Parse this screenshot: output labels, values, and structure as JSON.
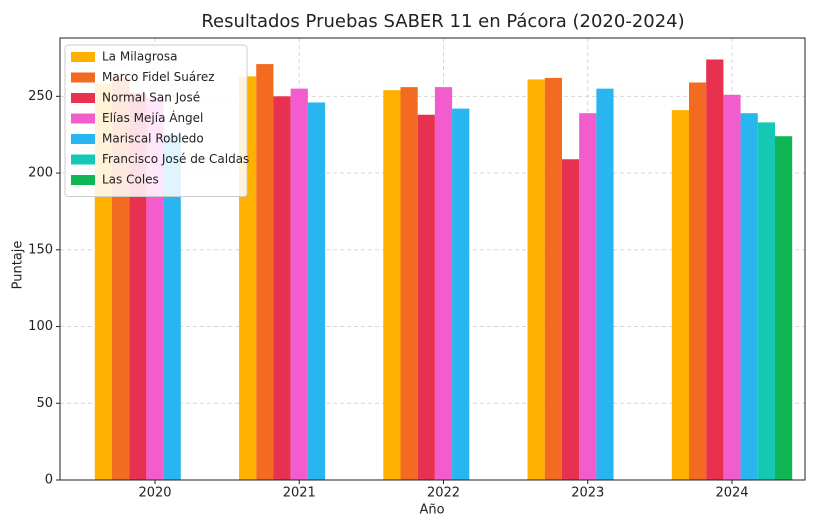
{
  "chart_data": {
    "type": "bar",
    "title": "Resultados Pruebas SABER 11 en Pácora (2020-2024)",
    "xlabel": "Año",
    "ylabel": "Puntaje",
    "categories": [
      "2020",
      "2021",
      "2022",
      "2023",
      "2024"
    ],
    "series": [
      {
        "name": "La Milagrosa",
        "color": "#ffb000",
        "values": [
          258,
          263,
          254,
          261,
          241
        ]
      },
      {
        "name": "Marco Fidel Suárez",
        "color": "#f26b21",
        "values": [
          262,
          271,
          256,
          262,
          259
        ]
      },
      {
        "name": "Normal San José",
        "color": "#e8304f",
        "values": [
          252,
          250,
          238,
          209,
          274
        ]
      },
      {
        "name": "Elías Mejía Ángel",
        "color": "#f25ccc",
        "values": [
          249,
          255,
          256,
          239,
          251
        ]
      },
      {
        "name": "Mariscal Robledo",
        "color": "#28b5f0",
        "values": [
          225,
          246,
          242,
          255,
          239
        ]
      },
      {
        "name": "Francisco José de Caldas",
        "color": "#14c8b4",
        "values": [
          null,
          null,
          null,
          null,
          233
        ]
      },
      {
        "name": "Las Coles",
        "color": "#10b554",
        "values": [
          null,
          null,
          null,
          null,
          224
        ]
      }
    ],
    "ylim": [
      0,
      288
    ],
    "yticks": [
      0,
      50,
      100,
      150,
      200,
      250
    ],
    "grid": true,
    "legend": "upper left"
  }
}
